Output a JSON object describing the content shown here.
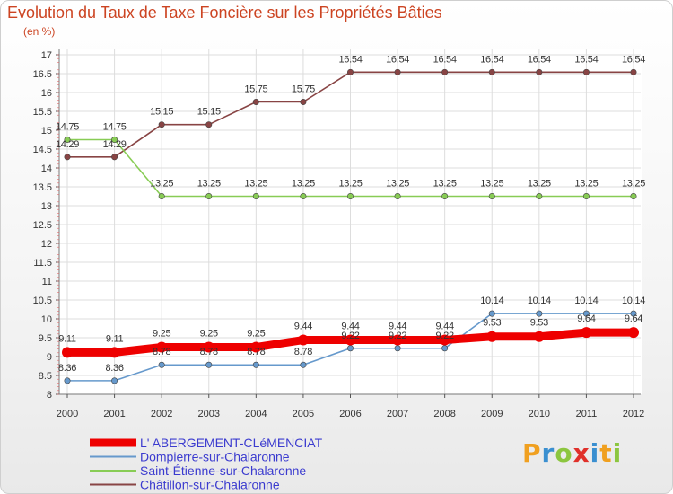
{
  "title": "Evolution du Taux de Taxe Foncière sur les Propriétés Bâties",
  "unit_label": "(en %)",
  "logo": {
    "letters": [
      "P",
      "r",
      "o",
      "x",
      "i",
      "t",
      "i"
    ],
    "colors": [
      "#f0a020",
      "#3a8fd0",
      "#8cc63f",
      "#e0302a",
      "#3a8fd0",
      "#f0a020",
      "#8cc63f"
    ]
  },
  "chart_data": {
    "type": "line",
    "title": "Evolution du Taux de Taxe Foncière sur les Propriétés Bâties",
    "ylabel": "(en %)",
    "xlabel": "",
    "ylim": [
      8,
      17
    ],
    "yticks": [
      "8",
      "8.5",
      "9",
      "9.5",
      "10",
      "10.5",
      "11",
      "11.5",
      "12",
      "12.5",
      "13",
      "13.5",
      "14",
      "14.5",
      "15",
      "15.5",
      "16",
      "16.5",
      "17"
    ],
    "categories": [
      "2000",
      "2001",
      "2002",
      "2003",
      "2004",
      "2005",
      "2006",
      "2007",
      "2008",
      "2009",
      "2010",
      "2011",
      "2012"
    ],
    "series": [
      {
        "name": "L' ABERGEMENT-CLéMENCIAT",
        "color": "#ee0000",
        "values": [
          9.11,
          9.11,
          9.25,
          9.25,
          9.25,
          9.44,
          9.44,
          9.44,
          9.44,
          9.53,
          9.53,
          9.64,
          9.64
        ],
        "labels": [
          "9.11",
          "9.11",
          "9.25",
          "9.25",
          "9.25",
          "9.44",
          "9.44",
          "9.44",
          "9.44",
          "9.53",
          "9.53",
          "9.64",
          "9.64"
        ]
      },
      {
        "name": "Dompierre-sur-Chalaronne",
        "color": "#6699cc",
        "values": [
          8.36,
          8.36,
          8.78,
          8.78,
          8.78,
          8.78,
          9.22,
          9.22,
          9.22,
          10.14,
          10.14,
          10.14,
          10.14
        ],
        "labels": [
          "8.36",
          "8.36",
          "8.78",
          "8.78",
          "8.78",
          "8.78",
          "9.22",
          "9.22",
          "9.22",
          "10.14",
          "10.14",
          "10.14",
          "10.14"
        ]
      },
      {
        "name": "Saint-Étienne-sur-Chalaronne",
        "color": "#88cc55",
        "values": [
          14.75,
          14.75,
          13.25,
          13.25,
          13.25,
          13.25,
          13.25,
          13.25,
          13.25,
          13.25,
          13.25,
          13.25,
          13.25
        ],
        "labels": [
          "14.75",
          "14.75",
          "13.25",
          "13.25",
          "13.25",
          "13.25",
          "13.25",
          "13.25",
          "13.25",
          "13.25",
          "13.25",
          "13.25",
          "13.25"
        ]
      },
      {
        "name": "Châtillon-sur-Chalaronne",
        "color": "#884444",
        "values": [
          14.29,
          14.29,
          15.15,
          15.15,
          15.75,
          15.75,
          16.54,
          16.54,
          16.54,
          16.54,
          16.54,
          16.54,
          16.54
        ],
        "labels": [
          "14.29",
          "14.29",
          "15.15",
          "15.15",
          "15.75",
          "15.75",
          "16.54",
          "16.54",
          "16.54",
          "16.54",
          "16.54",
          "16.54",
          "16.54"
        ]
      }
    ],
    "legend_position": "bottom-left"
  }
}
